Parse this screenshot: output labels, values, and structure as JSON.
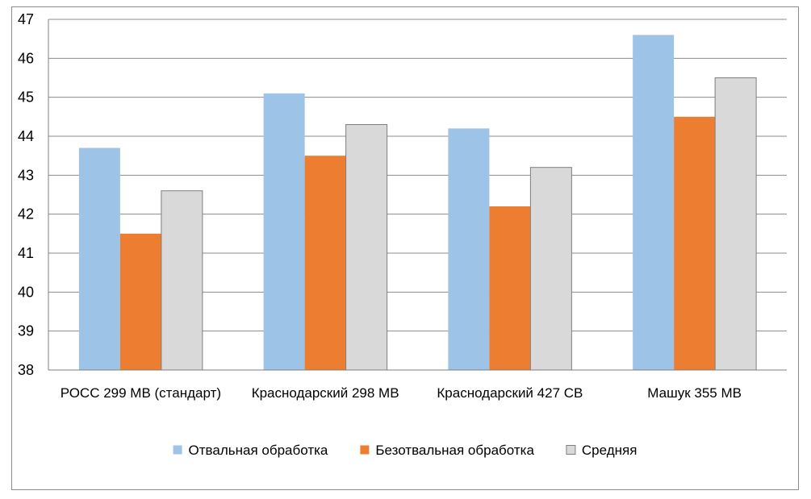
{
  "chart_data": {
    "type": "bar",
    "categories": [
      "РОСС 299 МВ (стандарт)",
      "Краснодарский 298 МВ",
      "Краснодарский 427 СВ",
      "Машук 355 МВ"
    ],
    "series": [
      {
        "name": "Отвальная  обработка",
        "values": [
          43.7,
          45.1,
          44.2,
          46.6
        ],
        "color": "#9DC3E6"
      },
      {
        "name": "Безотвальная обработка",
        "values": [
          41.5,
          43.5,
          42.2,
          44.5
        ],
        "color": "#ED7D31"
      },
      {
        "name": "Средняя",
        "values": [
          42.6,
          44.3,
          43.2,
          45.5
        ],
        "color": "#D9D9D9"
      }
    ],
    "ylim": [
      38,
      47
    ],
    "yticks": [
      38,
      39,
      40,
      41,
      42,
      43,
      44,
      45,
      46,
      47
    ],
    "grid": true,
    "legend": "bottom"
  }
}
